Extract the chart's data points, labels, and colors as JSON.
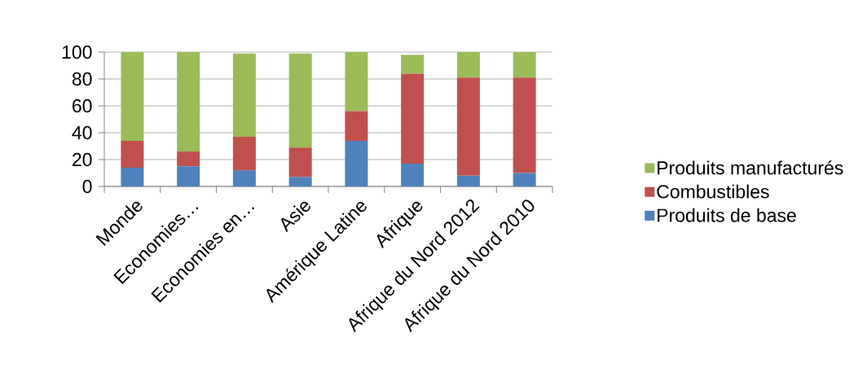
{
  "chart_data": {
    "type": "bar",
    "stacked": true,
    "categories": [
      "Monde",
      "Economies…",
      "Economies en…",
      "Asie",
      "Amérique Latine",
      "Afrique",
      "Afrique du Nord 2012",
      "Afrique du Nord 2010"
    ],
    "series": [
      {
        "name": "Produits de base",
        "color": "#4f81bd",
        "values": [
          14,
          15,
          12,
          7,
          34,
          17,
          8,
          10
        ]
      },
      {
        "name": "Combustibles",
        "color": "#c0504d",
        "values": [
          20,
          11,
          25,
          22,
          22,
          67,
          73,
          71
        ]
      },
      {
        "name": "Produits manufacturés",
        "color": "#9bbb59",
        "values": [
          66,
          74,
          62,
          70,
          44,
          14,
          19,
          19
        ]
      }
    ],
    "ylim": [
      0,
      100
    ],
    "yticks": [
      0,
      20,
      40,
      60,
      80,
      100
    ],
    "grid": "y",
    "legend": "right"
  }
}
